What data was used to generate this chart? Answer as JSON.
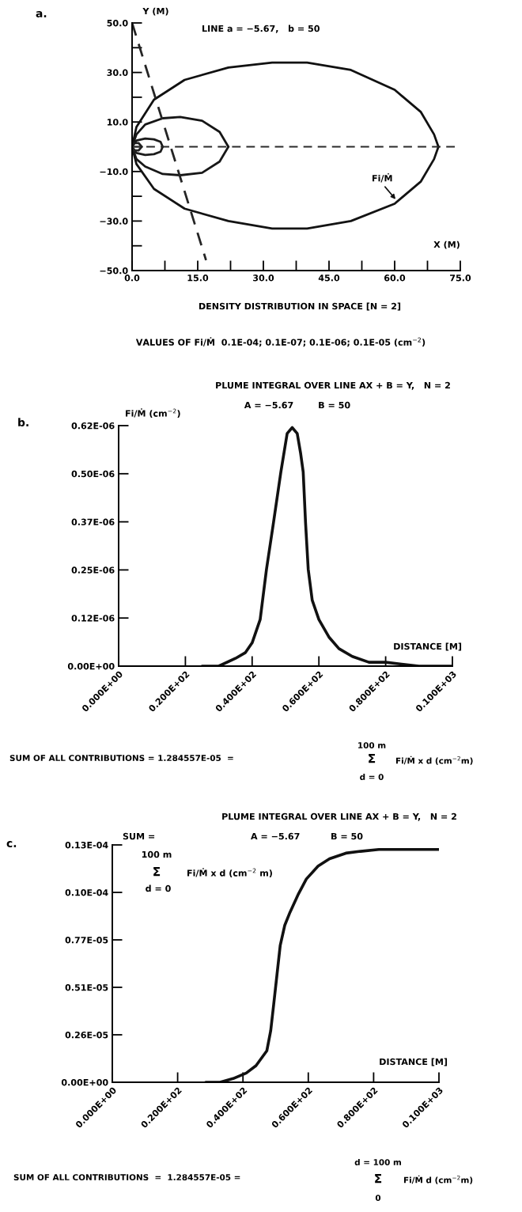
{
  "chart_data": [
    {
      "type": "line",
      "xlabel": "X (M)",
      "ylabel": "Y (M)",
      "xlim": [
        0,
        75
      ],
      "ylim": [
        -50,
        50
      ],
      "xticks": [
        {
          "value": 0,
          "label": "0.0"
        },
        {
          "value": 7.5,
          "label": null
        },
        {
          "value": 15,
          "label": "15.0"
        },
        {
          "value": 22.5,
          "label": null
        },
        {
          "value": 30,
          "label": "30.0"
        },
        {
          "value": 37.5,
          "label": null
        },
        {
          "value": 45,
          "label": "45.0"
        },
        {
          "value": 52.5,
          "label": null
        },
        {
          "value": 60,
          "label": "60.0"
        },
        {
          "value": 67.5,
          "label": null
        },
        {
          "value": 75,
          "label": "75.0"
        }
      ],
      "yticks": [
        {
          "value": 50,
          "label": "50.0"
        },
        {
          "value": 40,
          "label": null
        },
        {
          "value": 30,
          "label": "30.0"
        },
        {
          "value": 20,
          "label": null
        },
        {
          "value": 10,
          "label": "10.0"
        },
        {
          "value": 0,
          "label": null
        },
        {
          "value": -10,
          "label": "−10.0"
        },
        {
          "value": -20,
          "label": null
        },
        {
          "value": -30,
          "label": "−30.0"
        },
        {
          "value": -40,
          "label": null
        },
        {
          "value": -50,
          "label": "−50.0"
        }
      ],
      "series": [
        {
          "color": "#111111",
          "x": [
            0,
            1,
            5,
            12,
            22,
            32,
            40,
            50,
            60,
            66,
            69,
            70
          ],
          "values": [
            0,
            8,
            19,
            27,
            32,
            34,
            34,
            31,
            23,
            14,
            5,
            0
          ]
        },
        {
          "color": "#131313",
          "x": [
            0,
            1,
            5,
            12,
            22,
            32,
            40,
            50,
            60,
            66,
            69,
            70
          ],
          "values": [
            0,
            -7,
            -17,
            -25,
            -30,
            -33,
            -33,
            -30,
            -23,
            -14,
            -5,
            0
          ]
        },
        {
          "color": "#161616",
          "x": [
            0,
            1,
            3,
            7,
            11,
            16,
            20,
            22
          ],
          "values": [
            0,
            5,
            9,
            11.5,
            12,
            10.5,
            6,
            0
          ]
        },
        {
          "color": "#181818",
          "x": [
            0,
            1,
            3,
            7,
            11,
            16,
            20,
            22
          ],
          "values": [
            0,
            -5,
            -8,
            -11,
            -11.5,
            -10.5,
            -6,
            0
          ]
        },
        {
          "color": "#1b1b1b",
          "x": [
            0,
            1,
            3,
            5,
            6.5,
            7
          ],
          "values": [
            0,
            2.5,
            3.3,
            3,
            2,
            0
          ]
        },
        {
          "color": "#1d1d1d",
          "x": [
            0,
            1,
            3,
            5,
            6.5,
            7
          ],
          "values": [
            0,
            -2.5,
            -3.3,
            -3,
            -2,
            0
          ]
        },
        {
          "color": "#202020",
          "x": [
            0,
            0.5,
            1.5,
            2.2
          ],
          "values": [
            0,
            1.5,
            1.5,
            0
          ]
        },
        {
          "color": "#222222",
          "x": [
            0,
            0.5,
            1.5,
            2.2
          ],
          "values": [
            0,
            -1.5,
            -1.5,
            0
          ]
        },
        {
          "color": "#252525",
          "line_style": "dashed",
          "x": [
            0,
            16.9
          ],
          "values": [
            50,
            -45.8
          ]
        }
      ],
      "ref_lines": [
        {
          "axis": "y",
          "value": 0,
          "line_style": "dashed",
          "color": "#2a2a2a"
        }
      ],
      "annotations": [
        "a.",
        "LINE a = −5.67,   b = 50",
        "DENSITY DISTRIBUTION IN SPACE [N = 2]",
        "VALUES OF Fi/Ṁ  0.1E-04; 0.1E-07; 0.1E-06; 0.1E-05 (cm$^{−2}$)",
        "Fi/Ṁ"
      ]
    },
    {
      "type": "line",
      "title": "PLUME INTEGRAL OVER LINE AX + B = Y,   N = 2",
      "subtitle": "A = −5.67        B = 50",
      "xlabel": "DISTANCE [M]",
      "ylabel": "Fi/Ṁ (cm$^{−2}$)",
      "xlim": [
        0,
        100
      ],
      "ylim": [
        0,
        6.2e-07
      ],
      "xticks": [
        {
          "value": 0,
          "label": "0.000E+00"
        },
        {
          "value": 20,
          "label": "0.200E+02"
        },
        {
          "value": 40,
          "label": "0.400E+02"
        },
        {
          "value": 60,
          "label": "0.600E+02"
        },
        {
          "value": 80,
          "label": "0.800E+02"
        },
        {
          "value": 100,
          "label": "0.100E+03"
        }
      ],
      "yticks": [
        {
          "value": 0,
          "label": "0.00E+00"
        },
        {
          "value": 1.24e-07,
          "label": "0.12E-06"
        },
        {
          "value": 2.48e-07,
          "label": "0.25E-06"
        },
        {
          "value": 3.72e-07,
          "label": "0.37E-06"
        },
        {
          "value": 4.96e-07,
          "label": "0.50E-06"
        },
        {
          "value": 6.2e-07,
          "label": "0.62E-06"
        }
      ],
      "series": [
        {
          "color": "#111111",
          "x": [
            25,
            30,
            35,
            38,
            40,
            42.4,
            44.3,
            46.4,
            48.6,
            50.5,
            52,
            53.5,
            54.5,
            55.3,
            56,
            56.8,
            58,
            60,
            63,
            66,
            70,
            75,
            80,
            90,
            100
          ],
          "values": [
            0,
            0,
            2e-08,
            3.5e-08,
            6e-08,
            1.2e-07,
            2.5e-07,
            3.7e-07,
            5e-07,
            6e-07,
            6.15e-07,
            6e-07,
            5.5e-07,
            5e-07,
            3.7e-07,
            2.5e-07,
            1.7e-07,
            1.2e-07,
            7.5e-08,
            4.5e-08,
            2.5e-08,
            1e-08,
            1e-08,
            0,
            0
          ]
        }
      ],
      "annotations": [
        "b.",
        "SUM OF ALL CONTRIBUTIONS = 1.284557E-05  =",
        "100 m",
        "Σ",
        "d = 0",
        "Fi/Ṁ x d (cm$^{−2}$m)"
      ]
    },
    {
      "type": "line",
      "title": "PLUME INTEGRAL OVER LINE AX + B = Y,   N = 2",
      "subtitle": "A = −5.67          B = 50",
      "xlabel": "DISTANCE [M]",
      "xlim": [
        0,
        100
      ],
      "ylim": [
        0,
        1.2846e-05
      ],
      "xticks": [
        {
          "value": 0,
          "label": "0.000E+00"
        },
        {
          "value": 20,
          "label": "0.200E+02"
        },
        {
          "value": 40,
          "label": "0.400E+02"
        },
        {
          "value": 60,
          "label": "0.600E+02"
        },
        {
          "value": 80,
          "label": "0.800E+02"
        },
        {
          "value": 100,
          "label": "0.100E+03"
        }
      ],
      "yticks": [
        {
          "value": 0,
          "label": "0.00E+00"
        },
        {
          "value": 2.569e-06,
          "label": "0.26E-05"
        },
        {
          "value": 5.138e-06,
          "label": "0.51E-05"
        },
        {
          "value": 7.707e-06,
          "label": "0.77E-05"
        },
        {
          "value": 1.0276e-05,
          "label": "0.10E-04"
        },
        {
          "value": 1.2846e-05,
          "label": "0.13E-04"
        }
      ],
      "series": [
        {
          "color": "#111111",
          "x": [
            28.6,
            33,
            37,
            41,
            44,
            47.3,
            48.5,
            49.4,
            50.4,
            51.4,
            52.8,
            54.4,
            57,
            59.4,
            63,
            66.5,
            71.5,
            76,
            81.6,
            90,
            100
          ],
          "values": [
            0,
            0,
            2e-07,
            5e-07,
            9e-07,
            1.7e-06,
            2.8e-06,
            4.2e-06,
            5.8e-06,
            7.4e-06,
            8.5e-06,
            9.2e-06,
            1.02e-05,
            1.1e-05,
            1.17e-05,
            1.21e-05,
            1.24e-05,
            1.25e-05,
            1.26e-05,
            1.26e-05,
            1.26e-05
          ]
        }
      ],
      "annotations": [
        "c.",
        "SUM =",
        "100 m",
        "Σ",
        "d = 0",
        "Fi/Ṁ x d (cm$^{−2}$ m)",
        "SUM OF ALL CONTRIBUTIONS  =  1.284557E-05 =",
        "d = 100 m",
        "Σ",
        "0",
        "Fi/Ṁ d (cm$^{−2}$m)"
      ]
    }
  ]
}
